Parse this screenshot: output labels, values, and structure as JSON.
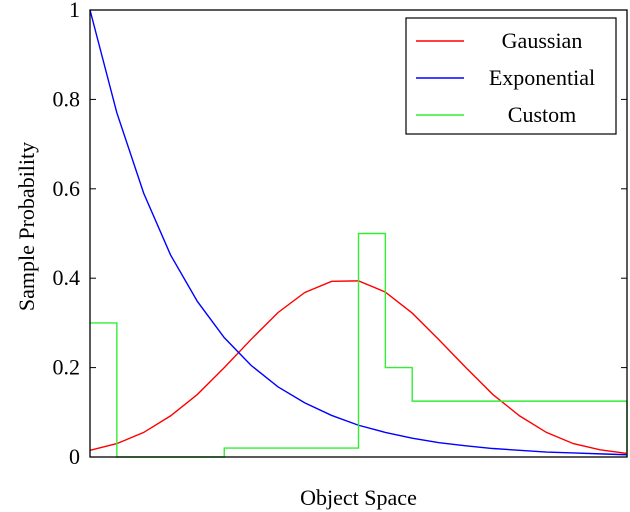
{
  "chart_data": {
    "type": "line",
    "title": "",
    "xlabel": "Object Space",
    "ylabel": "Sample Probability",
    "xlim": [
      0,
      1
    ],
    "ylim": [
      0,
      1
    ],
    "yticks": [
      0,
      0.2,
      0.4,
      0.6,
      0.8,
      1
    ],
    "ytick_labels": [
      "0",
      "0.2",
      "0.4",
      "0.6",
      "0.8",
      "1"
    ],
    "xticks_visible": false,
    "grid": false,
    "legend_position": "top-right",
    "series": [
      {
        "name": "Gaussian",
        "color": "#ff0000",
        "step": false,
        "x": [
          0,
          0.05,
          0.1,
          0.15,
          0.2,
          0.25,
          0.3,
          0.35,
          0.4,
          0.45,
          0.5,
          0.55,
          0.6,
          0.65,
          0.7,
          0.75,
          0.8,
          0.85,
          0.9,
          0.95,
          1.0
        ],
        "y": [
          0.015,
          0.03,
          0.055,
          0.092,
          0.14,
          0.2,
          0.263,
          0.323,
          0.368,
          0.393,
          0.394,
          0.369,
          0.322,
          0.262,
          0.2,
          0.14,
          0.092,
          0.055,
          0.03,
          0.016,
          0.008
        ]
      },
      {
        "name": "Exponential",
        "color": "#0000ff",
        "step": false,
        "x": [
          0,
          0.05,
          0.1,
          0.15,
          0.2,
          0.25,
          0.3,
          0.35,
          0.4,
          0.45,
          0.5,
          0.55,
          0.6,
          0.65,
          0.7,
          0.75,
          0.8,
          0.85,
          0.9,
          0.95,
          1.0
        ],
        "y": [
          1.0,
          0.77,
          0.59,
          0.452,
          0.348,
          0.267,
          0.205,
          0.157,
          0.121,
          0.093,
          0.071,
          0.055,
          0.042,
          0.032,
          0.025,
          0.019,
          0.015,
          0.011,
          0.009,
          0.007,
          0.005
        ]
      },
      {
        "name": "Custom",
        "color": "#33ee33",
        "step": true,
        "x": [
          0,
          0.05,
          0.05,
          0.25,
          0.25,
          0.5,
          0.5,
          0.55,
          0.55,
          0.6,
          0.6,
          1.0,
          1.0
        ],
        "y": [
          0.3,
          0.3,
          0.0,
          0.0,
          0.02,
          0.02,
          0.5,
          0.5,
          0.2,
          0.2,
          0.125,
          0.125,
          0.0
        ]
      }
    ]
  }
}
